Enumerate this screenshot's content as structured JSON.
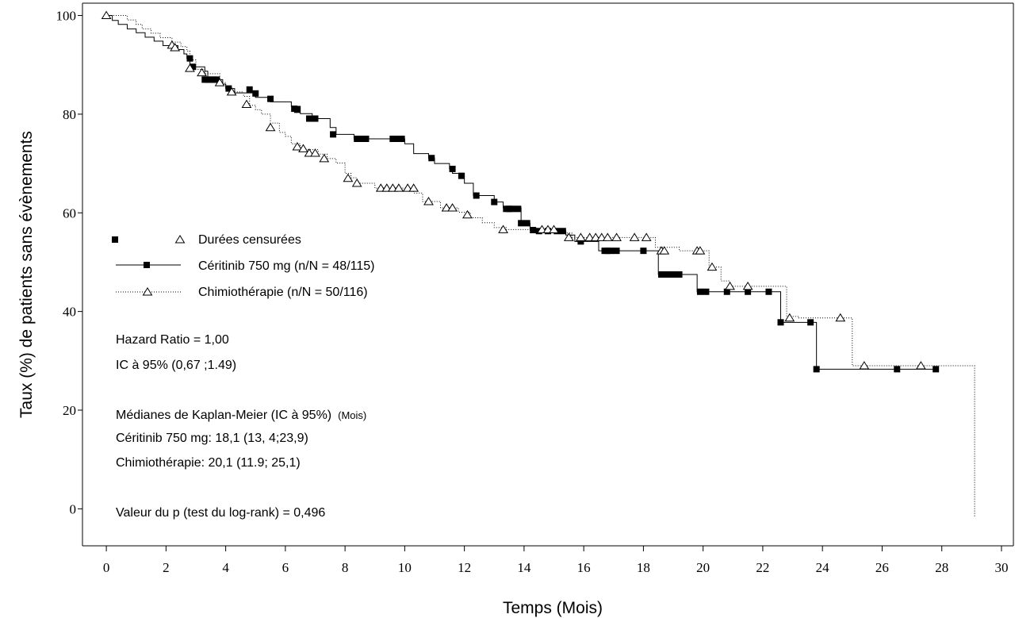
{
  "chart_data": {
    "type": "line",
    "title": "",
    "xlabel": "Temps (Mois)",
    "ylabel": "Taux (%) de patients sans évènements",
    "xlim": [
      -0.8,
      30.4
    ],
    "ylim": [
      -7.5,
      102.5
    ],
    "x_ticks": [
      0,
      2,
      4,
      6,
      8,
      10,
      12,
      14,
      16,
      18,
      20,
      22,
      24,
      26,
      28,
      30
    ],
    "x_tick_labels": [
      "0",
      "2",
      "4",
      "6",
      "8",
      "10",
      "12",
      "14",
      "16",
      "18",
      "20",
      "22",
      "24",
      "26",
      "28",
      "30"
    ],
    "y_ticks": [
      0,
      20,
      40,
      60,
      80,
      100
    ],
    "y_tick_labels": [
      "0",
      "20",
      "40",
      "60",
      "80",
      "100"
    ],
    "grid": false,
    "legend": {
      "placement": "left-middle",
      "censored_label": "Durées censurées",
      "entries": [
        "Céritinib 750 mg (n/N = 48/115)",
        "Chimiothérapie (n/N = 50/116)"
      ]
    },
    "series": [
      {
        "name": "Céritinib 750 mg (n/N = 48/115)",
        "style": "solid",
        "marker": "filled-square",
        "color": "#000000",
        "step_points": [
          [
            0,
            100
          ],
          [
            0.2,
            99
          ],
          [
            0.4,
            98.2
          ],
          [
            0.7,
            97.3
          ],
          [
            1.0,
            96.5
          ],
          [
            1.3,
            95.6
          ],
          [
            1.6,
            94.8
          ],
          [
            1.9,
            93.9
          ],
          [
            2.4,
            93.1
          ],
          [
            2.6,
            92.2
          ],
          [
            2.7,
            91.3
          ],
          [
            2.8,
            89.6
          ],
          [
            3.3,
            88.7
          ],
          [
            3.4,
            87.0
          ],
          [
            3.9,
            86.1
          ],
          [
            4.0,
            85.2
          ],
          [
            4.3,
            84.3
          ],
          [
            5.0,
            83.4
          ],
          [
            5.5,
            82.5
          ],
          [
            6.2,
            81.6
          ],
          [
            6.5,
            80.1
          ],
          [
            6.9,
            79.1
          ],
          [
            7.5,
            77.3
          ],
          [
            7.7,
            75.9
          ],
          [
            8.3,
            75.0
          ],
          [
            10.0,
            74.0
          ],
          [
            10.3,
            72.0
          ],
          [
            10.8,
            71.1
          ],
          [
            11.0,
            70.0
          ],
          [
            11.5,
            68.9
          ],
          [
            11.6,
            68.0
          ],
          [
            12.0,
            66.0
          ],
          [
            12.3,
            63.5
          ],
          [
            13.0,
            62.2
          ],
          [
            13.3,
            61.0
          ],
          [
            13.9,
            57.9
          ],
          [
            14.2,
            56.5
          ],
          [
            14.5,
            56.3
          ],
          [
            15.4,
            55.5
          ],
          [
            15.7,
            54.2
          ],
          [
            16.5,
            52.3
          ],
          [
            18.5,
            47.5
          ],
          [
            19.8,
            44.0
          ],
          [
            22.6,
            37.8
          ],
          [
            23.8,
            28.3
          ]
        ],
        "censored": [
          [
            2.8,
            91.3
          ],
          [
            2.9,
            89.6
          ],
          [
            3.3,
            87.0
          ],
          [
            3.4,
            87.0
          ],
          [
            3.5,
            87.0
          ],
          [
            3.6,
            87.0
          ],
          [
            3.7,
            87.0
          ],
          [
            4.1,
            85.2
          ],
          [
            4.8,
            85.0
          ],
          [
            5.0,
            84.2
          ],
          [
            5.5,
            83.1
          ],
          [
            6.3,
            81.1
          ],
          [
            6.4,
            80.9
          ],
          [
            6.8,
            79.1
          ],
          [
            7.0,
            79.1
          ],
          [
            7.6,
            75.9
          ],
          [
            8.4,
            75.0
          ],
          [
            8.5,
            75.0
          ],
          [
            8.7,
            75.0
          ],
          [
            9.6,
            75.0
          ],
          [
            9.7,
            75.0
          ],
          [
            9.9,
            75.0
          ],
          [
            10.9,
            71.1
          ],
          [
            11.6,
            68.9
          ],
          [
            11.9,
            67.5
          ],
          [
            12.4,
            63.5
          ],
          [
            13.0,
            62.2
          ],
          [
            13.4,
            60.8
          ],
          [
            13.5,
            60.8
          ],
          [
            13.6,
            60.8
          ],
          [
            13.8,
            60.8
          ],
          [
            13.9,
            57.9
          ],
          [
            14.1,
            57.9
          ],
          [
            14.3,
            56.5
          ],
          [
            14.5,
            56.3
          ],
          [
            14.8,
            56.3
          ],
          [
            15.1,
            56.3
          ],
          [
            15.3,
            56.3
          ],
          [
            15.9,
            54.2
          ],
          [
            16.7,
            52.3
          ],
          [
            16.8,
            52.3
          ],
          [
            16.9,
            52.3
          ],
          [
            17.1,
            52.3
          ],
          [
            18.0,
            52.3
          ],
          [
            18.6,
            47.5
          ],
          [
            18.8,
            47.5
          ],
          [
            19.0,
            47.5
          ],
          [
            19.2,
            47.5
          ],
          [
            19.9,
            44.0
          ],
          [
            20.1,
            44.0
          ],
          [
            20.8,
            44.0
          ],
          [
            21.5,
            44.0
          ],
          [
            22.2,
            44.0
          ],
          [
            22.6,
            37.8
          ],
          [
            23.6,
            37.8
          ],
          [
            23.8,
            28.3
          ],
          [
            26.5,
            28.3
          ],
          [
            27.8,
            28.3
          ]
        ]
      },
      {
        "name": "Chimiothérapie (n/N = 50/116)",
        "style": "dotted",
        "marker": "open-triangle",
        "color": "#000000",
        "step_points": [
          [
            0,
            100
          ],
          [
            0.7,
            99.1
          ],
          [
            1.0,
            98.2
          ],
          [
            1.2,
            97.3
          ],
          [
            1.5,
            96.4
          ],
          [
            1.8,
            95.5
          ],
          [
            2.2,
            94.6
          ],
          [
            2.5,
            93.7
          ],
          [
            2.7,
            92.8
          ],
          [
            2.8,
            91.0
          ],
          [
            3.0,
            89.1
          ],
          [
            3.3,
            88.2
          ],
          [
            3.8,
            86.4
          ],
          [
            4.0,
            85.5
          ],
          [
            4.2,
            84.5
          ],
          [
            4.6,
            83.6
          ],
          [
            4.8,
            81.8
          ],
          [
            5.0,
            80.9
          ],
          [
            5.2,
            80.0
          ],
          [
            5.5,
            78.2
          ],
          [
            5.8,
            76.3
          ],
          [
            6.0,
            75.5
          ],
          [
            6.2,
            74.0
          ],
          [
            6.5,
            72.8
          ],
          [
            7.1,
            71.9
          ],
          [
            7.4,
            71.0
          ],
          [
            7.7,
            70.1
          ],
          [
            8.0,
            68.0
          ],
          [
            8.2,
            67.1
          ],
          [
            8.4,
            66.0
          ],
          [
            9.0,
            65.0
          ],
          [
            10.3,
            64.0
          ],
          [
            10.6,
            62.3
          ],
          [
            11.2,
            61.0
          ],
          [
            11.8,
            60.1
          ],
          [
            12.2,
            59.0
          ],
          [
            12.6,
            58.0
          ],
          [
            13.0,
            57.0
          ],
          [
            13.4,
            56.6
          ],
          [
            15.3,
            55.9
          ],
          [
            15.6,
            55.0
          ],
          [
            18.4,
            53.0
          ],
          [
            19.2,
            52.3
          ],
          [
            20.2,
            49.0
          ],
          [
            20.6,
            46.2
          ],
          [
            20.9,
            45.1
          ],
          [
            22.8,
            39.0
          ],
          [
            23.2,
            38.7
          ],
          [
            25.0,
            29.0
          ],
          [
            29.1,
            -1.5
          ]
        ],
        "censored": [
          [
            0,
            100
          ],
          [
            2.2,
            94.0
          ],
          [
            2.3,
            93.5
          ],
          [
            2.8,
            89.3
          ],
          [
            3.2,
            88.4
          ],
          [
            3.8,
            86.4
          ],
          [
            4.2,
            84.5
          ],
          [
            4.7,
            82.0
          ],
          [
            5.5,
            77.3
          ],
          [
            6.4,
            73.4
          ],
          [
            6.6,
            73.0
          ],
          [
            6.8,
            72.1
          ],
          [
            7.0,
            72.1
          ],
          [
            7.3,
            71.0
          ],
          [
            8.1,
            67.0
          ],
          [
            8.4,
            66.0
          ],
          [
            9.2,
            65.0
          ],
          [
            9.4,
            65.0
          ],
          [
            9.6,
            65.0
          ],
          [
            9.8,
            65.0
          ],
          [
            10.1,
            65.0
          ],
          [
            10.3,
            65.0
          ],
          [
            10.8,
            62.3
          ],
          [
            11.4,
            61.0
          ],
          [
            11.6,
            61.0
          ],
          [
            12.1,
            59.6
          ],
          [
            13.3,
            56.6
          ],
          [
            14.6,
            56.6
          ],
          [
            14.8,
            56.6
          ],
          [
            15.0,
            56.6
          ],
          [
            15.5,
            55.0
          ],
          [
            15.9,
            55.0
          ],
          [
            16.2,
            55.0
          ],
          [
            16.4,
            55.0
          ],
          [
            16.6,
            55.0
          ],
          [
            16.8,
            55.0
          ],
          [
            17.1,
            55.0
          ],
          [
            17.7,
            55.0
          ],
          [
            18.1,
            55.0
          ],
          [
            18.6,
            52.3
          ],
          [
            18.7,
            52.3
          ],
          [
            19.8,
            52.3
          ],
          [
            19.9,
            52.3
          ],
          [
            20.3,
            49.0
          ],
          [
            20.9,
            45.1
          ],
          [
            21.5,
            45.1
          ],
          [
            22.9,
            38.7
          ],
          [
            24.6,
            38.7
          ],
          [
            25.4,
            29.0
          ],
          [
            27.3,
            29.0
          ]
        ]
      }
    ],
    "annotations": [
      "Hazard Ratio  = 1,00",
      "IC à 95% (0,67 ;1.49)",
      "Médianes de Kaplan-Meier (IC à 95%)",
      "(Mois)",
      "Céritinib 750 mg: 18,1 (13, 4;23,9)",
      "Chimiothérapie: 20,1 (11.9; 25,1)",
      "Valeur du p (test du log-rank) = 0,496"
    ]
  }
}
